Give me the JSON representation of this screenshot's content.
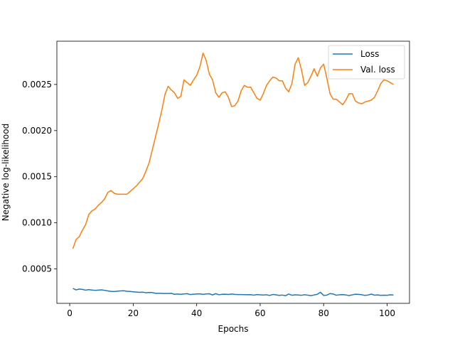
{
  "chart_data": {
    "type": "line",
    "title": "",
    "xlabel": "Epochs",
    "ylabel": "Negative log-likelihood",
    "xlim": [
      -4.05,
      107.05
    ],
    "ylim": [
      0.000127,
      0.002969
    ],
    "xticks": [
      0,
      20,
      40,
      60,
      80,
      100
    ],
    "xtick_labels": [
      "0",
      "20",
      "40",
      "60",
      "80",
      "100"
    ],
    "yticks": [
      0.0005,
      0.001,
      0.0015,
      0.002,
      0.0025
    ],
    "ytick_labels": [
      "0.0005",
      "0.0010",
      "0.0015",
      "0.0020",
      "0.0025"
    ],
    "grid": false,
    "legend_position": "upper right",
    "x": [
      1,
      2,
      3,
      4,
      5,
      6,
      7,
      8,
      9,
      10,
      11,
      12,
      13,
      14,
      15,
      16,
      17,
      18,
      19,
      20,
      21,
      22,
      23,
      24,
      25,
      26,
      27,
      28,
      29,
      30,
      31,
      32,
      33,
      34,
      35,
      36,
      37,
      38,
      39,
      40,
      41,
      42,
      43,
      44,
      45,
      46,
      47,
      48,
      49,
      50,
      51,
      52,
      53,
      54,
      55,
      56,
      57,
      58,
      59,
      60,
      61,
      62,
      63,
      64,
      65,
      66,
      67,
      68,
      69,
      70,
      71,
      72,
      73,
      74,
      75,
      76,
      77,
      78,
      79,
      80,
      81,
      82,
      83,
      84,
      85,
      86,
      87,
      88,
      89,
      90,
      91,
      92,
      93,
      94,
      95,
      96,
      97,
      98,
      99,
      100,
      101,
      102
    ],
    "series": [
      {
        "name": "Loss",
        "color": "#1f77b4",
        "values": [
          0.000289,
          0.000273,
          0.000282,
          0.000278,
          0.00027,
          0.000276,
          0.000271,
          0.000268,
          0.00027,
          0.000273,
          0.000268,
          0.000262,
          0.000257,
          0.000255,
          0.000259,
          0.000262,
          0.000264,
          0.000258,
          0.000256,
          0.000252,
          0.000249,
          0.000246,
          0.000248,
          0.000242,
          0.000245,
          0.000244,
          0.000236,
          0.000236,
          0.000235,
          0.000234,
          0.000234,
          0.000236,
          0.000225,
          0.000228,
          0.000225,
          0.000229,
          0.000232,
          0.000222,
          0.000226,
          0.000229,
          0.00023,
          0.000224,
          0.000229,
          0.000231,
          0.000218,
          0.000232,
          0.00022,
          0.000225,
          0.000226,
          0.000223,
          0.000228,
          0.000224,
          0.000222,
          0.000222,
          0.000221,
          0.00022,
          0.000221,
          0.000216,
          0.000222,
          0.000219,
          0.000217,
          0.00022,
          0.000213,
          0.000223,
          0.000219,
          0.000214,
          0.000217,
          0.00021,
          0.000228,
          0.000215,
          0.000219,
          0.000217,
          0.000215,
          0.00022,
          0.000216,
          0.000211,
          0.000218,
          0.000225,
          0.000247,
          0.000213,
          0.000216,
          0.000233,
          0.000228,
          0.000215,
          0.00022,
          0.000221,
          0.000218,
          0.000212,
          0.000219,
          0.000226,
          0.000224,
          0.00022,
          0.000214,
          0.000217,
          0.000227,
          0.000216,
          0.000218,
          0.000214,
          0.000216,
          0.000215,
          0.000219,
          0.000217
        ]
      },
      {
        "name": "Val. loss",
        "color": "#ff7f0e",
        "values": [
          0.00072,
          0.00082,
          0.00085,
          0.00092,
          0.00098,
          0.00109,
          0.00113,
          0.00115,
          0.00119,
          0.00122,
          0.00126,
          0.00133,
          0.00135,
          0.00132,
          0.00131,
          0.00131,
          0.00131,
          0.00131,
          0.00134,
          0.00137,
          0.0014,
          0.00144,
          0.00148,
          0.00156,
          0.00165,
          0.00179,
          0.00193,
          0.00207,
          0.00222,
          0.00239,
          0.00248,
          0.00244,
          0.00241,
          0.00235,
          0.00237,
          0.00255,
          0.00252,
          0.00249,
          0.00255,
          0.0026,
          0.00269,
          0.00284,
          0.00276,
          0.00261,
          0.00255,
          0.00241,
          0.00236,
          0.00241,
          0.00242,
          0.00236,
          0.00226,
          0.00227,
          0.00232,
          0.00243,
          0.00249,
          0.00247,
          0.00247,
          0.00241,
          0.00235,
          0.00233,
          0.0024,
          0.00249,
          0.00254,
          0.00258,
          0.00257,
          0.00254,
          0.00254,
          0.00246,
          0.00242,
          0.00251,
          0.00272,
          0.00279,
          0.00266,
          0.00249,
          0.00252,
          0.00259,
          0.00267,
          0.00259,
          0.00268,
          0.00272,
          0.00257,
          0.0024,
          0.00234,
          0.00234,
          0.00231,
          0.00228,
          0.00233,
          0.0024,
          0.0024,
          0.00232,
          0.0023,
          0.00229,
          0.00231,
          0.00232,
          0.00233,
          0.00236,
          0.00243,
          0.00251,
          0.00255,
          0.00254,
          0.00252,
          0.0025
        ]
      }
    ]
  }
}
